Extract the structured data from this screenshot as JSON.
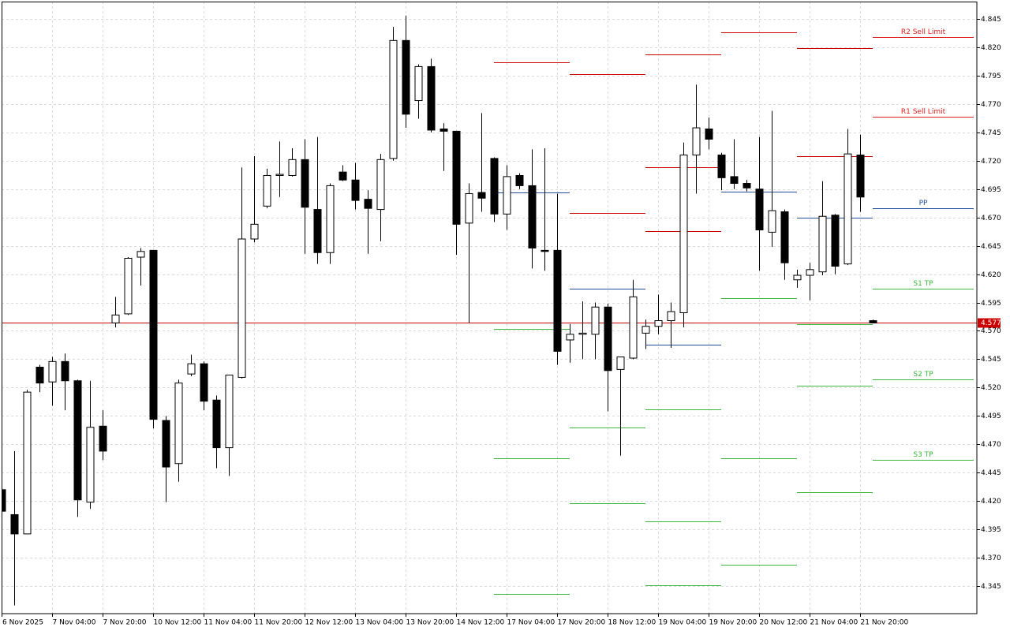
{
  "chart_data": {
    "type": "candlestick",
    "categories": [
      "6 Nov 2025",
      null,
      null,
      null,
      "7 Nov 04:00",
      null,
      null,
      null,
      "7 Nov 20:00",
      null,
      null,
      null,
      "10 Nov 12:00",
      null,
      null,
      null,
      "11 Nov 04:00",
      null,
      null,
      null,
      "11 Nov 20:00",
      null,
      null,
      null,
      "12 Nov 12:00",
      null,
      null,
      null,
      "13 Nov 04:00",
      null,
      null,
      null,
      "13 Nov 20:00",
      null,
      null,
      null,
      "14 Nov 12:00",
      null,
      null,
      null,
      "17 Nov 04:00",
      null,
      null,
      null,
      "17 Nov 20:00",
      null,
      null,
      null,
      "18 Nov 12:00",
      null,
      null,
      null,
      "19 Nov 04:00",
      null,
      null,
      null,
      "19 Nov 20:00",
      null,
      null,
      null,
      "20 Nov 12:00",
      null,
      null,
      null,
      "21 Nov 04:00",
      null,
      null,
      null,
      "21 Nov 20:00",
      null
    ],
    "open": [
      4.43,
      4.408,
      4.391,
      4.538,
      4.525,
      4.543,
      4.526,
      4.419,
      4.486,
      4.577,
      4.585,
      4.635,
      4.641,
      4.491,
      4.453,
      4.532,
      4.541,
      4.509,
      4.467,
      4.529,
      4.651,
      4.68,
      4.707,
      4.707,
      4.721,
      4.677,
      4.639,
      4.71,
      4.703,
      4.686,
      4.677,
      4.722,
      4.826,
      4.773,
      4.803,
      4.748,
      4.746,
      4.665,
      4.692,
      4.722,
      4.673,
      4.707,
      4.698,
      4.641,
      4.641,
      4.562,
      4.567,
      4.567,
      4.591,
      4.536,
      4.546,
      4.568,
      4.574,
      4.579,
      4.586,
      4.725,
      4.748,
      4.725,
      4.706,
      4.7,
      4.695,
      4.657,
      4.675,
      4.615,
      4.619,
      4.622,
      4.672,
      4.629,
      4.725,
      4.579
    ],
    "high": [
      4.432,
      4.464,
      4.518,
      4.54,
      4.547,
      4.55,
      4.527,
      4.526,
      4.5,
      4.6,
      4.635,
      4.643,
      4.641,
      4.495,
      4.527,
      4.549,
      4.543,
      4.513,
      4.531,
      4.714,
      4.724,
      4.713,
      4.737,
      4.731,
      4.739,
      4.741,
      4.7,
      4.716,
      4.718,
      4.694,
      4.726,
      4.838,
      4.848,
      4.805,
      4.81,
      4.753,
      4.746,
      4.7,
      4.762,
      4.723,
      4.716,
      4.709,
      4.73,
      4.731,
      4.691,
      4.576,
      4.596,
      4.595,
      4.594,
      4.547,
      4.615,
      4.58,
      4.602,
      4.595,
      4.736,
      4.787,
      4.758,
      4.727,
      4.739,
      4.703,
      4.741,
      4.764,
      4.677,
      4.624,
      4.63,
      4.702,
      4.673,
      4.748,
      4.743,
      4.58
    ],
    "low": [
      4.41,
      4.328,
      4.391,
      4.516,
      4.504,
      4.5,
      4.406,
      4.413,
      4.456,
      4.573,
      4.584,
      4.61,
      4.484,
      4.419,
      4.437,
      4.53,
      4.5,
      4.449,
      4.442,
      4.528,
      4.648,
      4.678,
      4.688,
      4.706,
      4.638,
      4.629,
      4.629,
      4.702,
      4.677,
      4.638,
      4.649,
      4.72,
      4.749,
      4.757,
      4.745,
      4.711,
      4.637,
      4.577,
      4.675,
      4.666,
      4.659,
      4.695,
      4.625,
      4.623,
      4.54,
      4.542,
      4.545,
      4.545,
      4.499,
      4.46,
      4.545,
      4.554,
      4.567,
      4.555,
      4.573,
      4.691,
      4.73,
      4.694,
      4.695,
      4.693,
      4.623,
      4.644,
      4.615,
      4.608,
      4.597,
      4.619,
      4.62,
      4.628,
      4.675,
      4.577
    ],
    "close": [
      4.411,
      4.391,
      4.516,
      4.524,
      4.543,
      4.526,
      4.421,
      4.485,
      4.464,
      4.584,
      4.634,
      4.64,
      4.492,
      4.45,
      4.524,
      4.541,
      4.508,
      4.467,
      4.531,
      4.651,
      4.664,
      4.707,
      4.708,
      4.721,
      4.679,
      4.639,
      4.698,
      4.703,
      4.685,
      4.678,
      4.721,
      4.826,
      4.761,
      4.803,
      4.747,
      4.746,
      4.664,
      4.691,
      4.687,
      4.673,
      4.706,
      4.698,
      4.643,
      4.64,
      4.552,
      4.567,
      4.568,
      4.591,
      4.535,
      4.547,
      4.6,
      4.574,
      4.579,
      4.587,
      4.725,
      4.749,
      4.739,
      4.705,
      4.7,
      4.696,
      4.659,
      4.676,
      4.63,
      4.619,
      4.624,
      4.671,
      4.627,
      4.726,
      4.688,
      4.577
    ],
    "up_color": "#ffffff",
    "down_color": "#000000",
    "ylim": [
      4.3207,
      4.8603
    ],
    "yticks": [
      {
        "value": 4.845,
        "label": "4.845"
      },
      {
        "value": 4.82,
        "label": "4.820"
      },
      {
        "value": 4.795,
        "label": "4.795"
      },
      {
        "value": 4.77,
        "label": "4.770"
      },
      {
        "value": 4.745,
        "label": "4.745"
      },
      {
        "value": 4.72,
        "label": "4.720"
      },
      {
        "value": 4.695,
        "label": "4.695"
      },
      {
        "value": 4.67,
        "label": "4.670"
      },
      {
        "value": 4.645,
        "label": "4.645"
      },
      {
        "value": 4.62,
        "label": "4.620"
      },
      {
        "value": 4.595,
        "label": "4.595"
      },
      {
        "value": 4.57,
        "label": "4.570"
      },
      {
        "value": 4.545,
        "label": "4.545"
      },
      {
        "value": 4.52,
        "label": "4.520"
      },
      {
        "value": 4.495,
        "label": "4.495"
      },
      {
        "value": 4.47,
        "label": "4.470"
      },
      {
        "value": 4.445,
        "label": "4.445"
      },
      {
        "value": 4.42,
        "label": "4.420"
      },
      {
        "value": 4.395,
        "label": "4.395"
      },
      {
        "value": 4.37,
        "label": "4.370"
      },
      {
        "value": 4.345,
        "label": "4.345"
      }
    ],
    "grid": true,
    "current_price": {
      "value": 4.577,
      "label": "4.577",
      "color": "#cc0000"
    },
    "pivots": [
      {
        "start": 39,
        "end": 45,
        "levels": [
          {
            "value": 4.807,
            "color": "#cc0000"
          },
          {
            "value": 4.692,
            "color": "#1f4f9f"
          },
          {
            "value": 4.572,
            "color": "#3cb83c"
          },
          {
            "value": 4.458,
            "color": "#3cb83c"
          },
          {
            "value": 4.338,
            "color": "#3cb83c"
          }
        ]
      },
      {
        "start": 45,
        "end": 51,
        "levels": [
          {
            "value": 4.796,
            "color": "#cc0000"
          },
          {
            "value": 4.674,
            "color": "#cc0000"
          },
          {
            "value": 4.607,
            "color": "#1f4f9f"
          },
          {
            "value": 4.485,
            "color": "#3cb83c"
          },
          {
            "value": 4.418,
            "color": "#3cb83c"
          }
        ]
      },
      {
        "start": 51,
        "end": 57,
        "levels": [
          {
            "value": 4.814,
            "color": "#cc0000"
          },
          {
            "value": 4.714,
            "color": "#cc0000"
          },
          {
            "value": 4.658,
            "color": "#cc0000"
          },
          {
            "value": 4.558,
            "color": "#1f4f9f"
          },
          {
            "value": 4.501,
            "color": "#3cb83c"
          },
          {
            "value": 4.402,
            "color": "#3cb83c"
          },
          {
            "value": 4.346,
            "color": "#3cb83c"
          }
        ]
      },
      {
        "start": 57,
        "end": 63,
        "levels": [
          {
            "value": 4.833,
            "color": "#cc0000"
          },
          {
            "value": 4.693,
            "color": "#1f4f9f"
          },
          {
            "value": 4.599,
            "color": "#3cb83c"
          },
          {
            "value": 4.458,
            "color": "#3cb83c"
          },
          {
            "value": 4.364,
            "color": "#3cb83c"
          }
        ]
      },
      {
        "start": 63,
        "end": 69,
        "levels": [
          {
            "value": 4.819,
            "color": "#cc0000"
          },
          {
            "value": 4.724,
            "color": "#cc0000"
          },
          {
            "value": 4.67,
            "color": "#1f4f9f"
          },
          {
            "value": 4.576,
            "color": "#3cb83c"
          },
          {
            "value": 4.522,
            "color": "#3cb83c"
          },
          {
            "value": 4.428,
            "color": "#3cb83c"
          }
        ]
      },
      {
        "start": 69,
        "end": 77,
        "levels": [
          {
            "value": 4.829,
            "label": "R2 Sell Limit",
            "color": "#e02020"
          },
          {
            "value": 4.759,
            "label": "R1 Sell Limit",
            "color": "#e02020"
          },
          {
            "value": 4.678,
            "label": "PP",
            "color": "#1f4f9f"
          },
          {
            "value": 4.607,
            "label": "S1 TP",
            "color": "#3cb83c"
          },
          {
            "value": 4.527,
            "label": "S2 TP",
            "color": "#3cb83c"
          },
          {
            "value": 4.456,
            "label": "S3 TP",
            "color": "#3cb83c"
          }
        ]
      }
    ]
  }
}
